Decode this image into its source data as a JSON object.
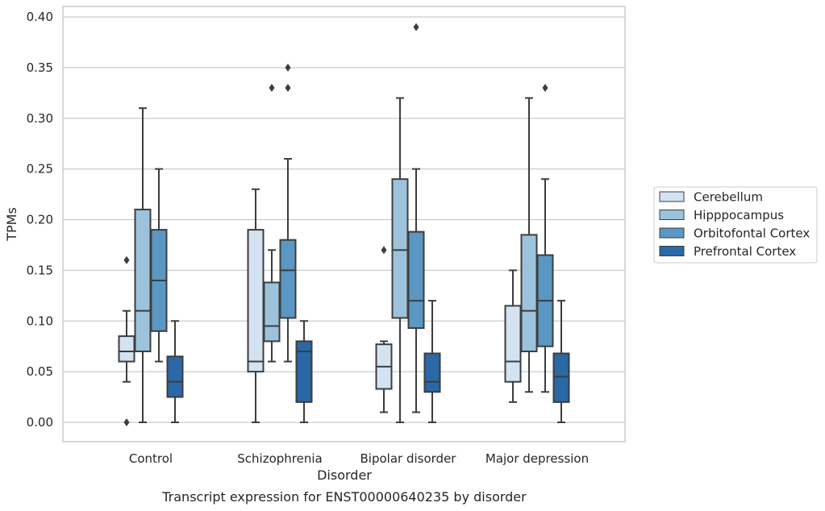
{
  "chart_data": {
    "type": "boxplot",
    "title": "Transcript expression for ENST00000640235 by disorder",
    "xlabel": "Disorder",
    "ylabel": "TPMs",
    "ylim": [
      -0.018,
      0.41
    ],
    "yticks": [
      0.0,
      0.05,
      0.1,
      0.15,
      0.2,
      0.25,
      0.3,
      0.35,
      0.4
    ],
    "ytick_labels": [
      "0.00",
      "0.05",
      "0.10",
      "0.15",
      "0.20",
      "0.25",
      "0.30",
      "0.35",
      "0.40"
    ],
    "grid": "horizontal",
    "legend_position": "outside right",
    "categories": [
      "Control",
      "Schizophrenia",
      "Bipolar disorder",
      "Major depression"
    ],
    "series": [
      {
        "name": "Cerebellum",
        "color": "#d3e3f2",
        "boxes": [
          {
            "whisker_low": 0.04,
            "q1": 0.06,
            "median": 0.07,
            "q3": 0.085,
            "whisker_high": 0.11,
            "outliers": [
              0.16,
              0.0
            ]
          },
          {
            "whisker_low": 0.0,
            "q1": 0.05,
            "median": 0.06,
            "q3": 0.19,
            "whisker_high": 0.23,
            "outliers": []
          },
          {
            "whisker_low": 0.01,
            "q1": 0.033,
            "median": 0.055,
            "q3": 0.077,
            "whisker_high": 0.08,
            "outliers": [
              0.17
            ]
          },
          {
            "whisker_low": 0.02,
            "q1": 0.04,
            "median": 0.06,
            "q3": 0.115,
            "whisker_high": 0.15,
            "outliers": []
          }
        ]
      },
      {
        "name": "Hipppocampus",
        "color": "#9cc3db",
        "boxes": [
          {
            "whisker_low": 0.0,
            "q1": 0.07,
            "median": 0.11,
            "q3": 0.21,
            "whisker_high": 0.31,
            "outliers": []
          },
          {
            "whisker_low": 0.06,
            "q1": 0.08,
            "median": 0.095,
            "q3": 0.138,
            "whisker_high": 0.17,
            "outliers": [
              0.33
            ]
          },
          {
            "whisker_low": 0.0,
            "q1": 0.103,
            "median": 0.17,
            "q3": 0.24,
            "whisker_high": 0.32,
            "outliers": []
          },
          {
            "whisker_low": 0.03,
            "q1": 0.07,
            "median": 0.11,
            "q3": 0.185,
            "whisker_high": 0.32,
            "outliers": []
          }
        ]
      },
      {
        "name": "Orbitofontal Cortex",
        "color": "#5a97c2",
        "boxes": [
          {
            "whisker_low": 0.06,
            "q1": 0.09,
            "median": 0.14,
            "q3": 0.19,
            "whisker_high": 0.25,
            "outliers": []
          },
          {
            "whisker_low": 0.06,
            "q1": 0.103,
            "median": 0.15,
            "q3": 0.18,
            "whisker_high": 0.26,
            "outliers": [
              0.33,
              0.35
            ]
          },
          {
            "whisker_low": 0.01,
            "q1": 0.093,
            "median": 0.12,
            "q3": 0.188,
            "whisker_high": 0.25,
            "outliers": [
              0.39
            ]
          },
          {
            "whisker_low": 0.03,
            "q1": 0.075,
            "median": 0.12,
            "q3": 0.165,
            "whisker_high": 0.24,
            "outliers": [
              0.33
            ]
          }
        ]
      },
      {
        "name": "Prefrontal Cortex",
        "color": "#2a68a6",
        "boxes": [
          {
            "whisker_low": 0.0,
            "q1": 0.025,
            "median": 0.04,
            "q3": 0.065,
            "whisker_high": 0.1,
            "outliers": []
          },
          {
            "whisker_low": 0.0,
            "q1": 0.02,
            "median": 0.07,
            "q3": 0.08,
            "whisker_high": 0.1,
            "outliers": []
          },
          {
            "whisker_low": 0.0,
            "q1": 0.03,
            "median": 0.04,
            "q3": 0.068,
            "whisker_high": 0.12,
            "outliers": []
          },
          {
            "whisker_low": 0.0,
            "q1": 0.02,
            "median": 0.045,
            "q3": 0.068,
            "whisker_high": 0.12,
            "outliers": []
          }
        ]
      }
    ]
  }
}
